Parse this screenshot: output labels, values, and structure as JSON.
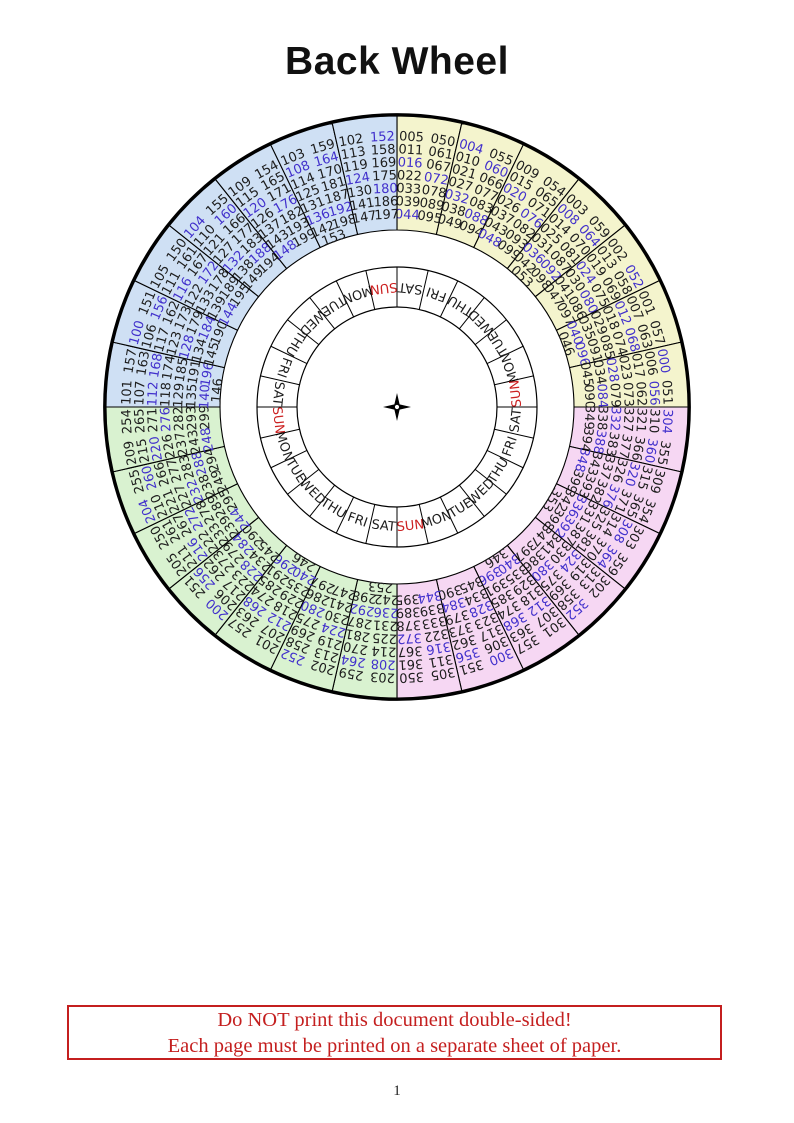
{
  "page": {
    "title": "Back Wheel",
    "page_number": "1"
  },
  "warning": {
    "line1": "Do NOT print this document double-sided!",
    "line2": "Each page must be printed on a separate sheet of paper."
  },
  "colors": {
    "quadrant_yellow": "#f4f4cd",
    "quadrant_blue": "#cfe0f4",
    "quadrant_green": "#d9f2d0",
    "quadrant_pink": "#f6d7f3",
    "number_black": "#1d1d1d",
    "number_indigo": "#4130cc",
    "sun_red": "#cc2222",
    "warning_red": "#c41f1f",
    "line_black": "#000000"
  },
  "wheel": {
    "center_marker": "4-point-star",
    "highlight_rule": "numbers divisible by 4 are printed in indigo",
    "day_ring": [
      "SAT",
      "FRI",
      "THU",
      "WED",
      "TUE",
      "MON",
      "SUN",
      "SAT",
      "FRI",
      "THU",
      "WED",
      "TUE",
      "MON",
      "SUN",
      "SAT",
      "FRI",
      "THU",
      "WED",
      "TUE",
      "MON",
      "SUN",
      "SAT",
      "FRI",
      "THU",
      "WED",
      "TUE",
      "MON",
      "SUN"
    ],
    "sectors": [
      {
        "quadrant": "yellow",
        "col1": [
          "005",
          "011",
          "016",
          "022",
          "033",
          "039",
          "044"
        ],
        "col2": [
          "050",
          "061",
          "067",
          "072",
          "078",
          "089",
          "095"
        ]
      },
      {
        "quadrant": "yellow",
        "col1": [
          "004",
          "010",
          "021",
          "027",
          "032",
          "038",
          "049"
        ],
        "col2": [
          "055",
          "060",
          "066",
          "077",
          "083",
          "088",
          "094"
        ]
      },
      {
        "quadrant": "yellow",
        "col1": [
          "009",
          "015",
          "020",
          "026",
          "037",
          "043",
          "048"
        ],
        "col2": [
          "054",
          "065",
          "071",
          "076",
          "082",
          "093",
          "099"
        ]
      },
      {
        "quadrant": "yellow",
        "col1": [
          "003",
          "008",
          "014",
          "025",
          "031",
          "036",
          "042",
          "053"
        ],
        "col2": [
          "059",
          "064",
          "070",
          "081",
          "087",
          "092",
          "098"
        ]
      },
      {
        "quadrant": "yellow",
        "col1": [
          "002",
          "013",
          "019",
          "024",
          "030",
          "041",
          "047"
        ],
        "col2": [
          "052",
          "058",
          "069",
          "075",
          "080",
          "086",
          "097"
        ]
      },
      {
        "quadrant": "yellow",
        "col1": [
          "001",
          "007",
          "012",
          "018",
          "029",
          "035",
          "040",
          "046"
        ],
        "col2": [
          "057",
          "063",
          "068",
          "074",
          "085",
          "091",
          "096"
        ]
      },
      {
        "quadrant": "yellow",
        "col1": [
          "000",
          "006",
          "017",
          "023",
          "028",
          "034",
          "045"
        ],
        "col2": [
          "051",
          "056",
          "062",
          "073",
          "079",
          "084",
          "090"
        ]
      },
      {
        "quadrant": "pink",
        "col1": [
          "304",
          "310",
          "321",
          "327",
          "332",
          "338",
          "349"
        ],
        "col2": [
          "355",
          "360",
          "366",
          "377",
          "383",
          "388",
          "394"
        ]
      },
      {
        "quadrant": "pink",
        "col1": [
          "309",
          "315",
          "320",
          "326",
          "337",
          "343",
          "348"
        ],
        "col2": [
          "354",
          "365",
          "371",
          "376",
          "382",
          "393",
          "399"
        ]
      },
      {
        "quadrant": "pink",
        "col1": [
          "303",
          "308",
          "314",
          "325",
          "331",
          "336",
          "342",
          "353"
        ],
        "col2": [
          "359",
          "364",
          "370",
          "381",
          "387",
          "392",
          "398"
        ]
      },
      {
        "quadrant": "pink",
        "col1": [
          "302",
          "313",
          "319",
          "324",
          "330",
          "341",
          "347"
        ],
        "col2": [
          "352",
          "358",
          "369",
          "375",
          "380",
          "386",
          "397"
        ]
      },
      {
        "quadrant": "pink",
        "col1": [
          "301",
          "307",
          "312",
          "318",
          "329",
          "335",
          "340",
          "346"
        ],
        "col2": [
          "357",
          "363",
          "368",
          "374",
          "385",
          "391",
          "396"
        ]
      },
      {
        "quadrant": "pink",
        "col1": [
          "300",
          "306",
          "317",
          "323",
          "328",
          "334",
          "345"
        ],
        "col2": [
          "351",
          "356",
          "362",
          "373",
          "379",
          "384",
          "390"
        ]
      },
      {
        "quadrant": "pink",
        "col1": [
          "305",
          "311",
          "316",
          "322",
          "333",
          "339",
          "344"
        ],
        "col2": [
          "350",
          "361",
          "367",
          "372",
          "378",
          "389",
          "395"
        ]
      },
      {
        "quadrant": "green",
        "col1": [
          "203",
          "208",
          "214",
          "225",
          "231",
          "236",
          "242",
          "253"
        ],
        "col2": [
          "259",
          "264",
          "270",
          "281",
          "287",
          "292",
          "298"
        ]
      },
      {
        "quadrant": "green",
        "col1": [
          "202",
          "213",
          "219",
          "224",
          "230",
          "241",
          "247"
        ],
        "col2": [
          "252",
          "258",
          "269",
          "275",
          "280",
          "286",
          "297"
        ]
      },
      {
        "quadrant": "green",
        "col1": [
          "201",
          "207",
          "212",
          "218",
          "229",
          "235",
          "240",
          "246"
        ],
        "col2": [
          "257",
          "263",
          "268",
          "274",
          "285",
          "291",
          "296"
        ]
      },
      {
        "quadrant": "green",
        "col1": [
          "200",
          "206",
          "217",
          "223",
          "228",
          "234",
          "245"
        ],
        "col2": [
          "251",
          "256",
          "262",
          "273",
          "279",
          "284",
          "290"
        ]
      },
      {
        "quadrant": "green",
        "col1": [
          "205",
          "211",
          "216",
          "222",
          "233",
          "239",
          "244"
        ],
        "col2": [
          "250",
          "261",
          "267",
          "272",
          "278",
          "289",
          "295"
        ]
      },
      {
        "quadrant": "green",
        "col1": [
          "204",
          "210",
          "221",
          "227",
          "232",
          "238",
          "249"
        ],
        "col2": [
          "255",
          "260",
          "266",
          "277",
          "283",
          "288",
          "294"
        ]
      },
      {
        "quadrant": "green",
        "col1": [
          "209",
          "215",
          "220",
          "226",
          "237",
          "243",
          "248"
        ],
        "col2": [
          "254",
          "265",
          "271",
          "276",
          "282",
          "293",
          "299"
        ]
      },
      {
        "quadrant": "blue",
        "col1": [
          "101",
          "107",
          "112",
          "118",
          "129",
          "135",
          "140",
          "146"
        ],
        "col2": [
          "157",
          "163",
          "168",
          "174",
          "185",
          "191",
          "196"
        ]
      },
      {
        "quadrant": "blue",
        "col1": [
          "100",
          "106",
          "117",
          "123",
          "128",
          "134",
          "145"
        ],
        "col2": [
          "151",
          "156",
          "162",
          "173",
          "179",
          "184",
          "190"
        ]
      },
      {
        "quadrant": "blue",
        "col1": [
          "105",
          "111",
          "116",
          "122",
          "133",
          "139",
          "144"
        ],
        "col2": [
          "150",
          "161",
          "167",
          "172",
          "178",
          "189",
          "195"
        ]
      },
      {
        "quadrant": "blue",
        "col1": [
          "104",
          "110",
          "121",
          "127",
          "132",
          "138",
          "149"
        ],
        "col2": [
          "155",
          "160",
          "166",
          "177",
          "183",
          "188",
          "194"
        ]
      },
      {
        "quadrant": "blue",
        "col1": [
          "109",
          "115",
          "120",
          "126",
          "137",
          "143",
          "148"
        ],
        "col2": [
          "154",
          "165",
          "171",
          "176",
          "182",
          "193",
          "199"
        ]
      },
      {
        "quadrant": "blue",
        "col1": [
          "103",
          "108",
          "114",
          "125",
          "131",
          "136",
          "142",
          "153"
        ],
        "col2": [
          "159",
          "164",
          "170",
          "181",
          "187",
          "192",
          "198"
        ]
      },
      {
        "quadrant": "blue",
        "col1": [
          "102",
          "113",
          "119",
          "124",
          "130",
          "141",
          "147"
        ],
        "col2": [
          "152",
          "158",
          "169",
          "175",
          "180",
          "186",
          "197"
        ]
      }
    ]
  }
}
